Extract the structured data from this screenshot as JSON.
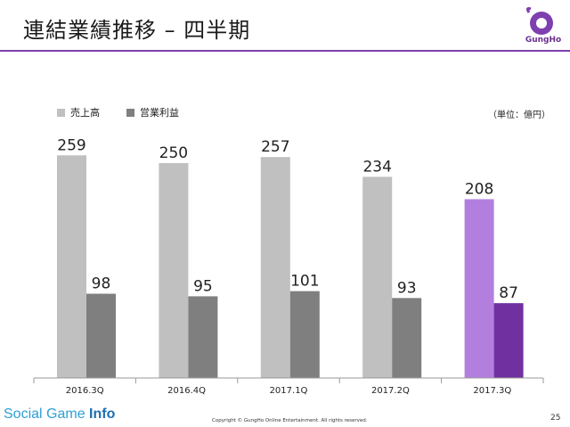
{
  "slide": {
    "title": "連結業績推移 – 四半期",
    "unit": "（単位：億円）",
    "logo_text": "GungHo",
    "footer_brand_a": "Social Game ",
    "footer_brand_b": "Info",
    "copyright": "Copyright © GungHo Online Entertainment. All rights reserved.",
    "page_number": "25"
  },
  "colors": {
    "sales": "#c0c0c0",
    "op_profit": "#7f7f7f",
    "sales_highlight": "#b27fde",
    "op_profit_highlight": "#7030a0",
    "brand_purple": "#7e3fb0"
  },
  "chart_data": {
    "type": "bar",
    "categories": [
      "2016.3Q",
      "2016.4Q",
      "2017.1Q",
      "2017.2Q",
      "2017.3Q"
    ],
    "series": [
      {
        "name": "売上高",
        "values": [
          259,
          250,
          257,
          234,
          208
        ]
      },
      {
        "name": "営業利益",
        "values": [
          98,
          95,
          101,
          93,
          87
        ]
      }
    ],
    "highlight_category": "2017.3Q",
    "ylim": [
      0,
      280
    ],
    "legend": "top-left",
    "grid": false
  }
}
